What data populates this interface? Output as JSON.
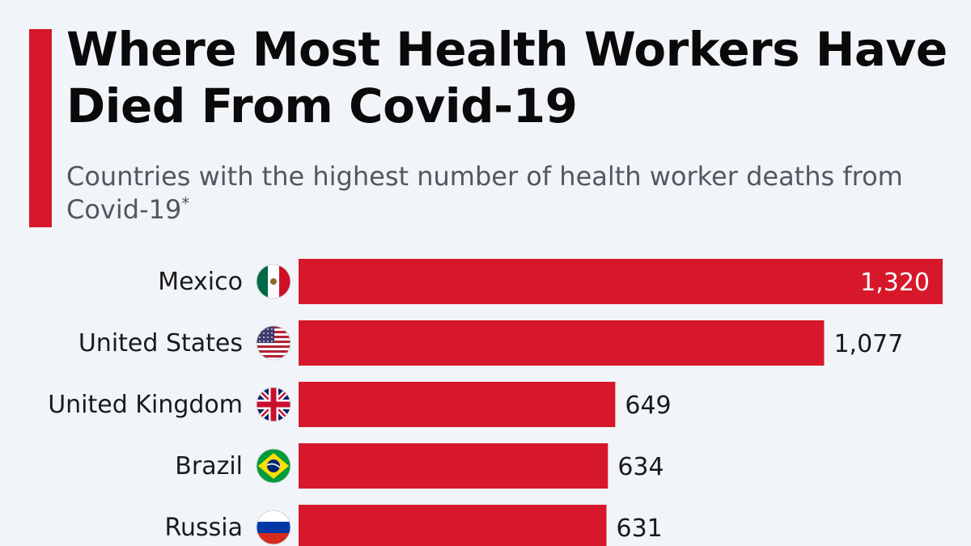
{
  "title": "Where Most Health Workers Have Died From Covid-19",
  "subtitle": "Countries with the highest number of health worker deaths from Covid-19",
  "subtitle_marker": "*",
  "colors": {
    "accent": "#d7182a",
    "bar": "#d7182a",
    "background": "#f1f5f9"
  },
  "chart_data": {
    "type": "bar",
    "orientation": "horizontal",
    "categories": [
      "Mexico",
      "United States",
      "United Kingdom",
      "Brazil",
      "Russia"
    ],
    "values": [
      1320,
      1077,
      649,
      634,
      631
    ],
    "value_labels": [
      "1,320",
      "1,077",
      "649",
      "634",
      "631"
    ],
    "flags": [
      "mexico-flag-icon",
      "united-states-flag-icon",
      "united-kingdom-flag-icon",
      "brazil-flag-icon",
      "russia-flag-icon"
    ],
    "xlim": [
      0,
      1320
    ],
    "title": "Where Most Health Workers Have Died From Covid-19",
    "xlabel": "",
    "ylabel": "",
    "grid": false,
    "legend": "none"
  }
}
